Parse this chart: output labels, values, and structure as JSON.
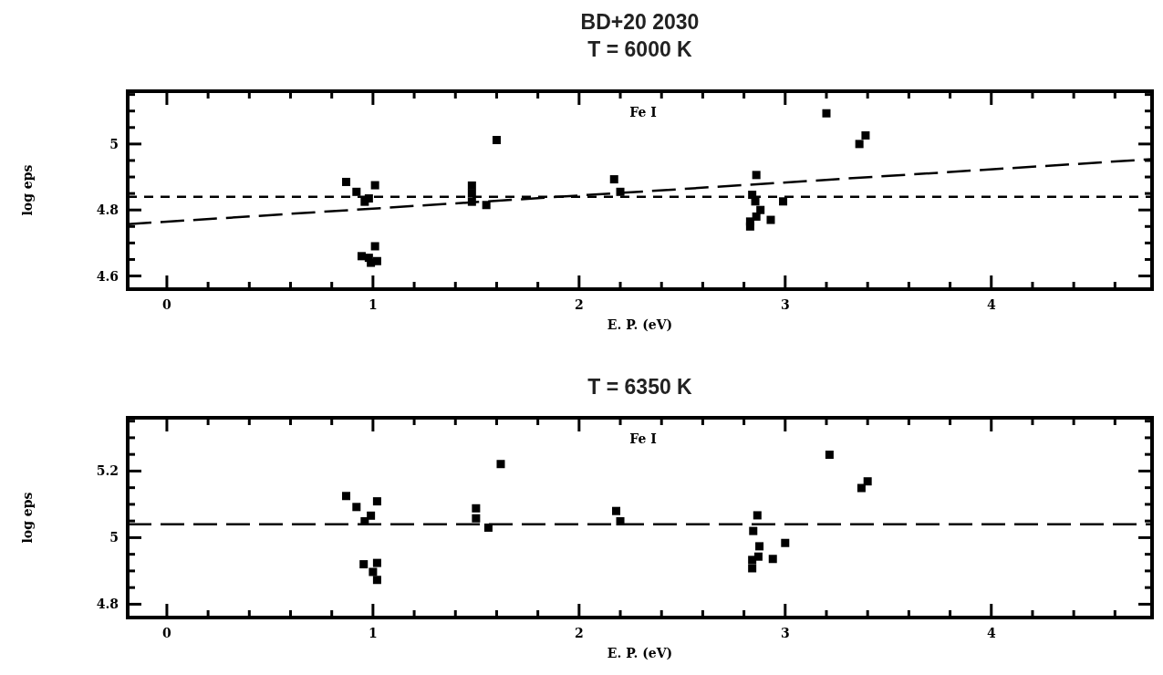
{
  "chart_data": [
    {
      "type": "scatter",
      "title": "BD+20 2030",
      "subtitle": "T = 6000 K",
      "xlabel": "E. P. (eV)",
      "ylabel": "log eps",
      "annotations": [
        "Fe I"
      ],
      "marker": "square",
      "grid": false,
      "xlim": [
        -0.19,
        4.78
      ],
      "ylim": [
        4.56,
        5.16
      ],
      "xticks": [
        0,
        {
          "value": 0.2,
          "label": null
        },
        {
          "value": 0.4,
          "label": null
        },
        {
          "value": 0.6,
          "label": null
        },
        {
          "value": 0.8,
          "label": null
        },
        1,
        {
          "value": 1.2,
          "label": null
        },
        {
          "value": 1.4,
          "label": null
        },
        {
          "value": 1.6,
          "label": null
        },
        {
          "value": 1.8,
          "label": null
        },
        2,
        {
          "value": 2.2,
          "label": null
        },
        {
          "value": 2.4,
          "label": null
        },
        {
          "value": 2.6,
          "label": null
        },
        {
          "value": 2.8,
          "label": null
        },
        3,
        {
          "value": 3.2,
          "label": null
        },
        {
          "value": 3.4,
          "label": null
        },
        {
          "value": 3.6,
          "label": null
        },
        {
          "value": 3.8,
          "label": null
        },
        4,
        {
          "value": 4.2,
          "label": null
        },
        {
          "value": 4.4,
          "label": null
        },
        {
          "value": 4.6,
          "label": null
        }
      ],
      "yticks": [
        4.6,
        {
          "value": 4.65,
          "label": null
        },
        {
          "value": 4.7,
          "label": null
        },
        {
          "value": 4.75,
          "label": null
        },
        4.8,
        {
          "value": 4.85,
          "label": null
        },
        {
          "value": 4.9,
          "label": null
        },
        {
          "value": 4.95,
          "label": null
        },
        5,
        {
          "value": 5.05,
          "label": null
        },
        {
          "value": 5.1,
          "label": null
        },
        {
          "value": 5.15,
          "label": null
        }
      ],
      "ref_lines": [
        {
          "axis": "y",
          "value": 4.84,
          "line_style": "dashed",
          "color": "#000000"
        }
      ],
      "series": [
        {
          "type": "scatter",
          "color": "#000000",
          "x": [
            0.87,
            0.92,
            0.96,
            0.98,
            1.01,
            1.01,
            0.945,
            0.99,
            0.98,
            1.02,
            1.6,
            1.48,
            1.48,
            1.48,
            1.55,
            2.17,
            2.2,
            3.2,
            3.39,
            3.36,
            2.86,
            2.84,
            2.855,
            2.88,
            2.86,
            2.83,
            2.83,
            2.93,
            2.99
          ],
          "values": [
            4.885,
            4.855,
            4.825,
            4.835,
            4.875,
            4.69,
            4.66,
            4.64,
            4.655,
            4.645,
            5.012,
            4.874,
            4.85,
            4.825,
            4.815,
            4.893,
            4.855,
            5.093,
            5.026,
            5.0,
            4.906,
            4.846,
            4.826,
            4.8,
            4.78,
            4.765,
            4.75,
            4.77,
            4.826
          ]
        },
        {
          "type": "line",
          "color": "#000000",
          "line_style": "dashed",
          "marker": "none",
          "x": [
            -0.19,
            4.78
          ],
          "values": [
            4.757,
            4.954
          ]
        }
      ]
    },
    {
      "type": "scatter",
      "title": "T = 6350 K",
      "xlabel": "E. P. (eV)",
      "ylabel": "log eps",
      "annotations": [
        "Fe I"
      ],
      "marker": "square",
      "grid": false,
      "xlim": [
        -0.19,
        4.78
      ],
      "ylim": [
        4.76,
        5.36
      ],
      "xticks": [
        0,
        {
          "value": 0.2,
          "label": null
        },
        {
          "value": 0.4,
          "label": null
        },
        {
          "value": 0.6,
          "label": null
        },
        {
          "value": 0.8,
          "label": null
        },
        1,
        {
          "value": 1.2,
          "label": null
        },
        {
          "value": 1.4,
          "label": null
        },
        {
          "value": 1.6,
          "label": null
        },
        {
          "value": 1.8,
          "label": null
        },
        2,
        {
          "value": 2.2,
          "label": null
        },
        {
          "value": 2.4,
          "label": null
        },
        {
          "value": 2.6,
          "label": null
        },
        {
          "value": 2.8,
          "label": null
        },
        3,
        {
          "value": 3.2,
          "label": null
        },
        {
          "value": 3.4,
          "label": null
        },
        {
          "value": 3.6,
          "label": null
        },
        {
          "value": 3.8,
          "label": null
        },
        4,
        {
          "value": 4.2,
          "label": null
        },
        {
          "value": 4.4,
          "label": null
        },
        {
          "value": 4.6,
          "label": null
        }
      ],
      "yticks": [
        4.8,
        {
          "value": 4.85,
          "label": null
        },
        {
          "value": 4.9,
          "label": null
        },
        {
          "value": 4.95,
          "label": null
        },
        5,
        {
          "value": 5.05,
          "label": null
        },
        {
          "value": 5.1,
          "label": null
        },
        {
          "value": 5.15,
          "label": null
        },
        5.2,
        {
          "value": 5.25,
          "label": null
        },
        {
          "value": 5.3,
          "label": null
        },
        {
          "value": 5.35,
          "label": null
        }
      ],
      "ref_lines": [
        {
          "axis": "y",
          "value": 5.04,
          "line_style": "dashed",
          "color": "#000000"
        }
      ],
      "series": [
        {
          "type": "scatter",
          "color": "#000000",
          "x": [
            0.87,
            0.92,
            1.02,
            0.99,
            0.96,
            0.955,
            1.02,
            1.0,
            1.02,
            1.62,
            1.5,
            1.5,
            1.56,
            2.18,
            2.2,
            3.215,
            3.4,
            3.37,
            2.865,
            2.845,
            2.875,
            2.87,
            2.84,
            2.84,
            2.94,
            3.0
          ],
          "values": [
            5.125,
            5.092,
            5.109,
            5.066,
            5.049,
            4.92,
            4.924,
            4.897,
            4.873,
            5.221,
            5.088,
            5.058,
            5.03,
            5.08,
            5.049,
            5.249,
            5.169,
            5.149,
            5.067,
            5.02,
            4.974,
            4.943,
            4.933,
            4.908,
            4.936,
            4.984
          ]
        }
      ]
    }
  ]
}
